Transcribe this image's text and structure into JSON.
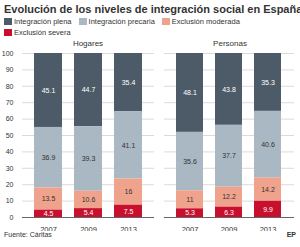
{
  "title": "Evolución de los niveles de integración social en España",
  "caption": "Fuente: Cáritas",
  "credit": "EP",
  "chart_data": [
    {
      "type": "bar",
      "title": "Hogares",
      "stacked": true,
      "data_labels": true,
      "grid": true,
      "legend": "top",
      "categories": [
        "2007",
        "2009",
        "2013"
      ],
      "series": [
        {
          "name": "Integración plena",
          "color": "#4d5b68",
          "values": [
            45.1,
            44.7,
            35.4
          ]
        },
        {
          "name": "Integración precaria",
          "color": "#a9b8c3",
          "values": [
            36.9,
            39.3,
            41.1
          ]
        },
        {
          "name": "Exclusión moderada",
          "color": "#f0a38c",
          "values": [
            13.5,
            10.6,
            16
          ]
        },
        {
          "name": "Exclusión severa",
          "color": "#c8102e",
          "values": [
            4.5,
            5.4,
            7.5
          ]
        }
      ],
      "ylim": [
        0,
        100
      ],
      "yticks": [
        0,
        10,
        20,
        30,
        40,
        50,
        60,
        70,
        80,
        90,
        100
      ]
    },
    {
      "type": "bar",
      "title": "Personas",
      "stacked": true,
      "data_labels": true,
      "grid": true,
      "tick_labels": "x",
      "categories": [
        "2007",
        "2009",
        "2013"
      ],
      "series": [
        {
          "name": "Integración plena",
          "color": "#4d5b68",
          "values": [
            48.1,
            43.8,
            35.3
          ]
        },
        {
          "name": "Integración precaria",
          "color": "#a9b8c3",
          "values": [
            35.6,
            37.7,
            40.6
          ]
        },
        {
          "name": "Exclusión moderada",
          "color": "#f0a38c",
          "values": [
            11,
            12.2,
            14.2
          ]
        },
        {
          "name": "Exclusión severa",
          "color": "#c8102e",
          "values": [
            5.3,
            6.3,
            9.9
          ]
        }
      ],
      "ylim": [
        0,
        100
      ],
      "yticks": [
        0,
        10,
        20,
        30,
        40,
        50,
        60,
        70,
        80,
        90,
        100
      ]
    }
  ]
}
